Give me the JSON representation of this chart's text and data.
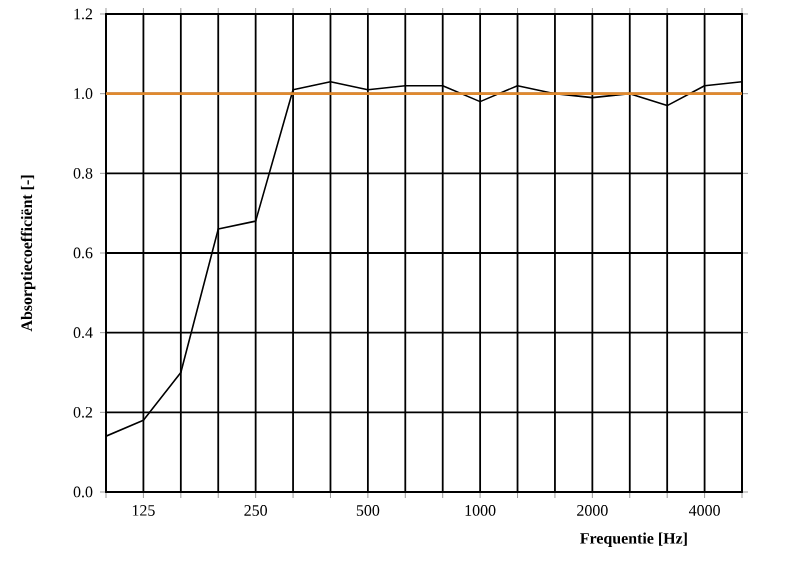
{
  "chart_data": {
    "type": "line",
    "xlabel": "Frequentie [Hz]",
    "ylabel": "Absorptiecoefficiënt [-]",
    "categories": [
      null,
      "125",
      null,
      null,
      "250",
      null,
      null,
      "500",
      null,
      null,
      "1000",
      null,
      null,
      "2000",
      null,
      null,
      "4000",
      null
    ],
    "series": [
      {
        "color": "#000000",
        "values": [
          0.14,
          0.18,
          0.3,
          0.66,
          0.68,
          1.01,
          1.03,
          1.01,
          1.02,
          1.02,
          0.98,
          1.02,
          1.0,
          0.99,
          1.0,
          0.97,
          1.02,
          1.03
        ]
      }
    ],
    "ylim": [
      0,
      1.2
    ],
    "yticks": [
      {
        "value": 0,
        "label": "0.0"
      },
      {
        "value": 0.2,
        "label": "0.2"
      },
      {
        "value": 0.4,
        "label": "0.4"
      },
      {
        "value": 0.6,
        "label": "0.6"
      },
      {
        "value": 0.8,
        "label": "0.8"
      },
      {
        "value": 1.0,
        "label": "1.0"
      },
      {
        "value": 1.2,
        "label": "1.2"
      }
    ],
    "ref_lines": [
      {
        "axis": "y",
        "value": 1.0,
        "color": "#e0892e"
      }
    ],
    "grid": true,
    "marker": "none",
    "line_style": "solid"
  }
}
